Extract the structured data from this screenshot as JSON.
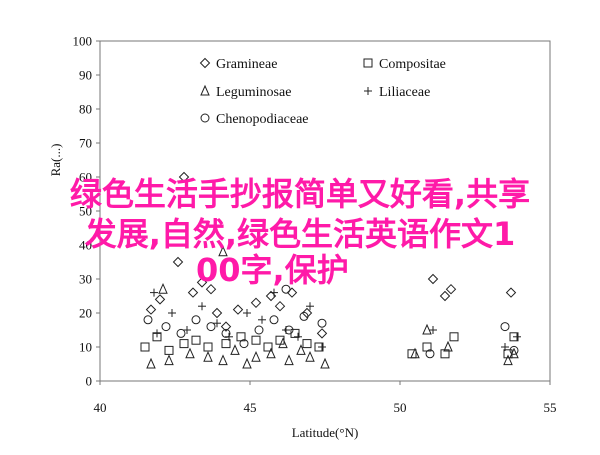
{
  "chart_data": {
    "type": "scatter",
    "xlabel": "Latitude(°N)",
    "ylabel": "Ra(...)",
    "xlim": [
      40,
      55
    ],
    "ylim": [
      0,
      100
    ],
    "x_ticks": [
      "40",
      "45",
      "50",
      "55"
    ],
    "y_ticks": [
      "0",
      "10",
      "20",
      "30",
      "40",
      "50",
      "60",
      "70",
      "80",
      "90",
      "100"
    ],
    "grid": false,
    "legend_placement": "top-right",
    "series": [
      {
        "name": "Gramineae",
        "marker": "diamond",
        "points": [
          [
            41.7,
            21
          ],
          [
            42.0,
            24
          ],
          [
            42.6,
            35
          ],
          [
            43.1,
            26
          ],
          [
            43.4,
            29
          ],
          [
            43.7,
            27
          ],
          [
            43.9,
            20
          ],
          [
            44.2,
            16
          ],
          [
            44.6,
            21
          ],
          [
            45.2,
            23
          ],
          [
            45.7,
            25
          ],
          [
            46.0,
            22
          ],
          [
            46.4,
            26
          ],
          [
            46.9,
            20
          ],
          [
            47.4,
            14
          ],
          [
            51.1,
            30
          ],
          [
            51.5,
            25
          ],
          [
            51.7,
            27
          ],
          [
            53.7,
            26
          ],
          [
            42.8,
            60
          ]
        ]
      },
      {
        "name": "Compositae",
        "marker": "square",
        "points": [
          [
            41.5,
            10
          ],
          [
            41.9,
            13
          ],
          [
            42.3,
            9
          ],
          [
            42.8,
            11
          ],
          [
            43.2,
            12
          ],
          [
            43.6,
            10
          ],
          [
            44.2,
            11
          ],
          [
            44.7,
            13
          ],
          [
            45.2,
            12
          ],
          [
            45.6,
            10
          ],
          [
            46.0,
            12
          ],
          [
            46.5,
            14
          ],
          [
            46.9,
            11
          ],
          [
            47.3,
            10
          ],
          [
            50.4,
            8
          ],
          [
            50.9,
            10
          ],
          [
            51.5,
            8
          ],
          [
            51.8,
            13
          ],
          [
            53.6,
            8
          ],
          [
            53.8,
            13
          ]
        ]
      },
      {
        "name": "Leguminosae",
        "marker": "triangle",
        "points": [
          [
            41.7,
            5
          ],
          [
            42.3,
            6
          ],
          [
            43.0,
            8
          ],
          [
            43.6,
            7
          ],
          [
            44.1,
            6
          ],
          [
            44.5,
            9
          ],
          [
            44.9,
            5
          ],
          [
            45.2,
            7
          ],
          [
            45.7,
            8
          ],
          [
            46.1,
            11
          ],
          [
            46.3,
            6
          ],
          [
            46.7,
            9
          ],
          [
            47.0,
            7
          ],
          [
            47.5,
            5
          ],
          [
            50.5,
            8
          ],
          [
            50.9,
            15
          ],
          [
            51.6,
            10
          ],
          [
            53.6,
            6
          ],
          [
            53.8,
            8
          ],
          [
            42.1,
            27
          ],
          [
            44.1,
            38
          ]
        ]
      },
      {
        "name": "Liliaceae",
        "marker": "plus",
        "points": [
          [
            41.8,
            26
          ],
          [
            42.4,
            20
          ],
          [
            42.9,
            15
          ],
          [
            43.4,
            22
          ],
          [
            43.9,
            17
          ],
          [
            44.3,
            13
          ],
          [
            44.9,
            20
          ],
          [
            45.4,
            18
          ],
          [
            45.8,
            26
          ],
          [
            46.2,
            15
          ],
          [
            46.6,
            13
          ],
          [
            47.0,
            22
          ],
          [
            47.4,
            10
          ],
          [
            51.1,
            15
          ],
          [
            53.5,
            10
          ],
          [
            53.9,
            13
          ],
          [
            41.9,
            14
          ]
        ]
      },
      {
        "name": "Chenopodiaceae",
        "marker": "circle",
        "points": [
          [
            41.6,
            18
          ],
          [
            42.2,
            16
          ],
          [
            42.7,
            14
          ],
          [
            43.2,
            18
          ],
          [
            43.7,
            16
          ],
          [
            44.2,
            14
          ],
          [
            44.8,
            11
          ],
          [
            45.3,
            15
          ],
          [
            45.8,
            18
          ],
          [
            46.3,
            15
          ],
          [
            46.8,
            19
          ],
          [
            47.4,
            17
          ],
          [
            51.0,
            8
          ],
          [
            53.5,
            16
          ],
          [
            53.8,
            9
          ],
          [
            46.2,
            27
          ]
        ]
      }
    ]
  },
  "overlay_text": {
    "line1": "绿色生活手抄报简单又好看,共享",
    "line2": "发展,自然,绿色生活英语作文1",
    "line3": "00字,保护"
  }
}
